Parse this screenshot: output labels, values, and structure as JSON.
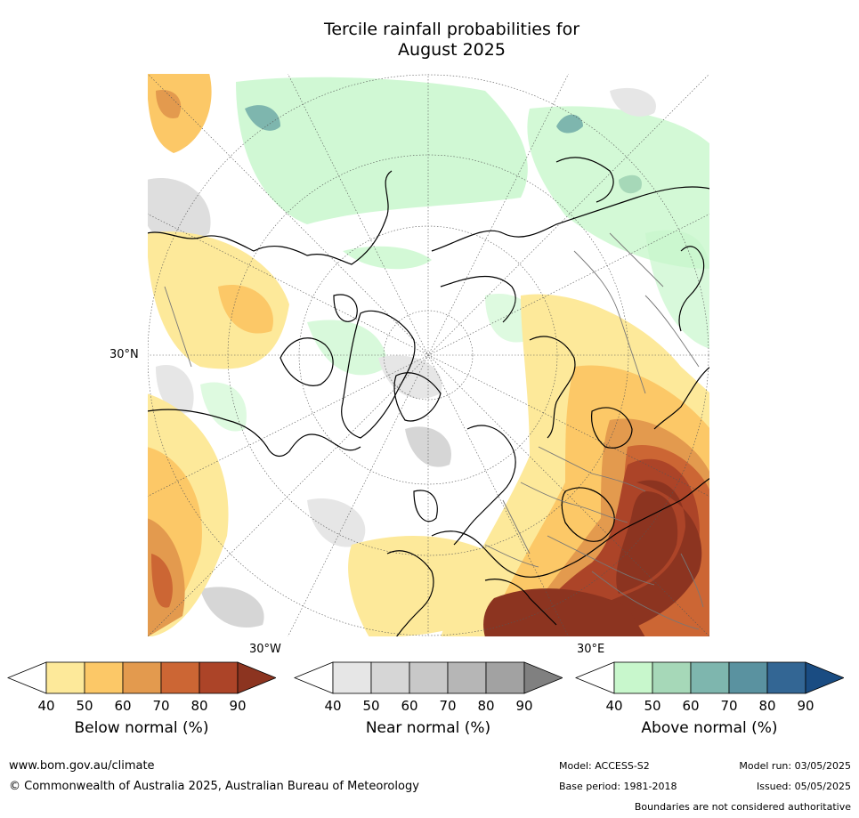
{
  "title": {
    "line1": "Tercile rainfall probabilities for",
    "line2": "August 2025"
  },
  "map": {
    "lat_label": "30°N",
    "lon_label_west": "30°W",
    "lon_label_east": "30°E"
  },
  "colorbars": [
    {
      "id": "below",
      "label": "Below normal (%)",
      "ticks": [
        "40",
        "50",
        "60",
        "70",
        "80",
        "90"
      ],
      "colors": [
        "#ffffff",
        "#fde99a",
        "#fcc867",
        "#e39a4e",
        "#cc6634",
        "#ac4428",
        "#8c3420"
      ]
    },
    {
      "id": "near",
      "label": "Near normal (%)",
      "ticks": [
        "40",
        "50",
        "60",
        "70",
        "80",
        "90"
      ],
      "colors": [
        "#ffffff",
        "#e6e6e6",
        "#d6d6d6",
        "#c8c8c8",
        "#b6b6b6",
        "#a2a2a2",
        "#808080"
      ]
    },
    {
      "id": "above",
      "label": "Above normal (%)",
      "ticks": [
        "40",
        "50",
        "60",
        "70",
        "80",
        "90"
      ],
      "colors": [
        "#ffffff",
        "#c8f7cc",
        "#a6d8b8",
        "#7eb6ae",
        "#5a92a0",
        "#336694",
        "#1a4c82"
      ]
    }
  ],
  "footer": {
    "website": "www.bom.gov.au/climate",
    "copyright": "© Commonwealth of Australia 2025, Australian Bureau of Meteorology",
    "model": "Model: ACCESS-S2",
    "base_period": "Base period: 1981-2018",
    "model_run": "Model run: 03/05/2025",
    "issued": "Issued: 05/05/2025",
    "disclaimer": "Boundaries are not considered authoritative"
  }
}
